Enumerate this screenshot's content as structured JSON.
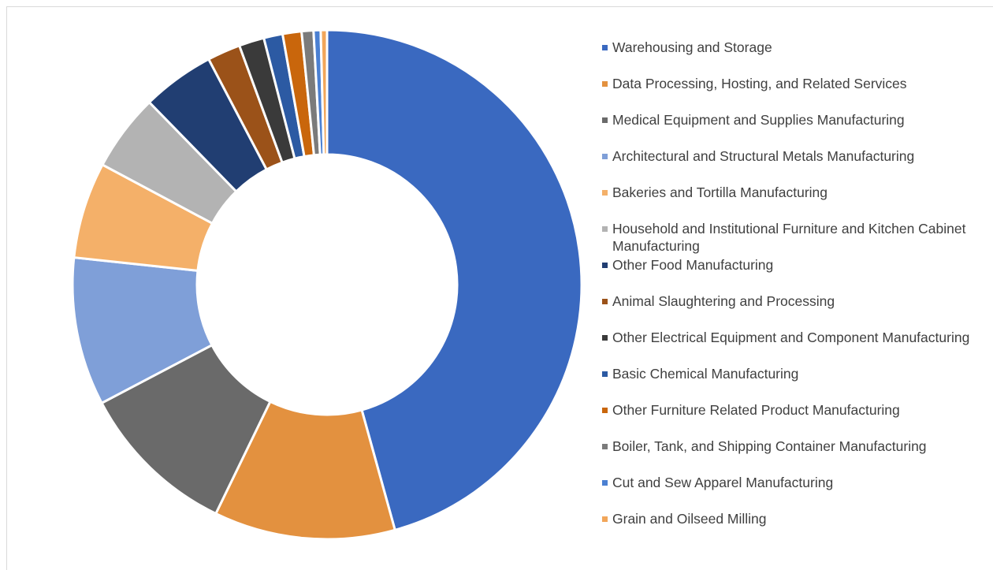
{
  "chart_data": {
    "type": "donut",
    "categories": [
      "Warehousing and Storage",
      "Data Processing, Hosting, and Related Services",
      "Medical Equipment and Supplies Manufacturing",
      "Architectural and Structural Metals Manufacturing",
      "Bakeries and Tortilla Manufacturing",
      "Household and Institutional Furniture and Kitchen Cabinet Manufacturing",
      "Other Food Manufacturing",
      "Animal Slaughtering and Processing",
      "Other Electrical Equipment and Component Manufacturing",
      "Basic Chemical Manufacturing",
      "Other Furniture Related Product Manufacturing",
      "Boiler, Tank, and Shipping Container Manufacturing",
      "Cut and Sew Apparel Manufacturing",
      "Grain and Oilseed Milling"
    ],
    "values": [
      45.7,
      11.5,
      10.1,
      9.4,
      6.1,
      4.9,
      4.6,
      2.1,
      1.6,
      1.2,
      1.2,
      0.75,
      0.45,
      0.4
    ],
    "colors": [
      "#3a69c0",
      "#e3913f",
      "#6a6a6a",
      "#7f9fd8",
      "#f4b069",
      "#b3b3b3",
      "#213e72",
      "#9b5219",
      "#3a3a3a",
      "#2c5aa3",
      "#c9660c",
      "#7b7b7b",
      "#4b80d2",
      "#f2a65a"
    ],
    "legend": "right"
  }
}
